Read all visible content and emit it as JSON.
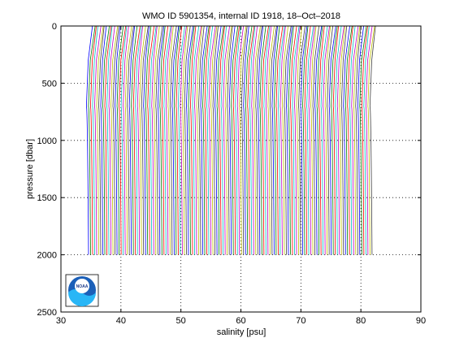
{
  "chart_data": {
    "type": "line",
    "title": "WMO ID 5901354, internal ID 1918, 18–Oct–2018",
    "xlabel": "salinity [psu]",
    "ylabel": "pressure [dbar]",
    "xlim": [
      30,
      90
    ],
    "ylim": [
      0,
      2500
    ],
    "y_reversed": true,
    "xticks": [
      "30",
      "40",
      "50",
      "60",
      "70",
      "80",
      "90"
    ],
    "yticks": [
      "0",
      "500",
      "1000",
      "1500",
      "2000",
      "2500"
    ],
    "grid": true,
    "grid_style": "dotted",
    "series_colors": [
      "#0000ff",
      "#008000",
      "#ff0000",
      "#00bfbf",
      "#bf00bf",
      "#bfbf00",
      "#404040"
    ],
    "profiles": {
      "count": 140,
      "first_offset_psu": 34.6,
      "offset_step_psu": 0.34,
      "surface_salinity": 35.4,
      "min_salinity": 34.4,
      "min_pressure": 700,
      "deep_salinity": 34.75,
      "max_pressure": 2000
    },
    "logo": "noaa-logo"
  }
}
